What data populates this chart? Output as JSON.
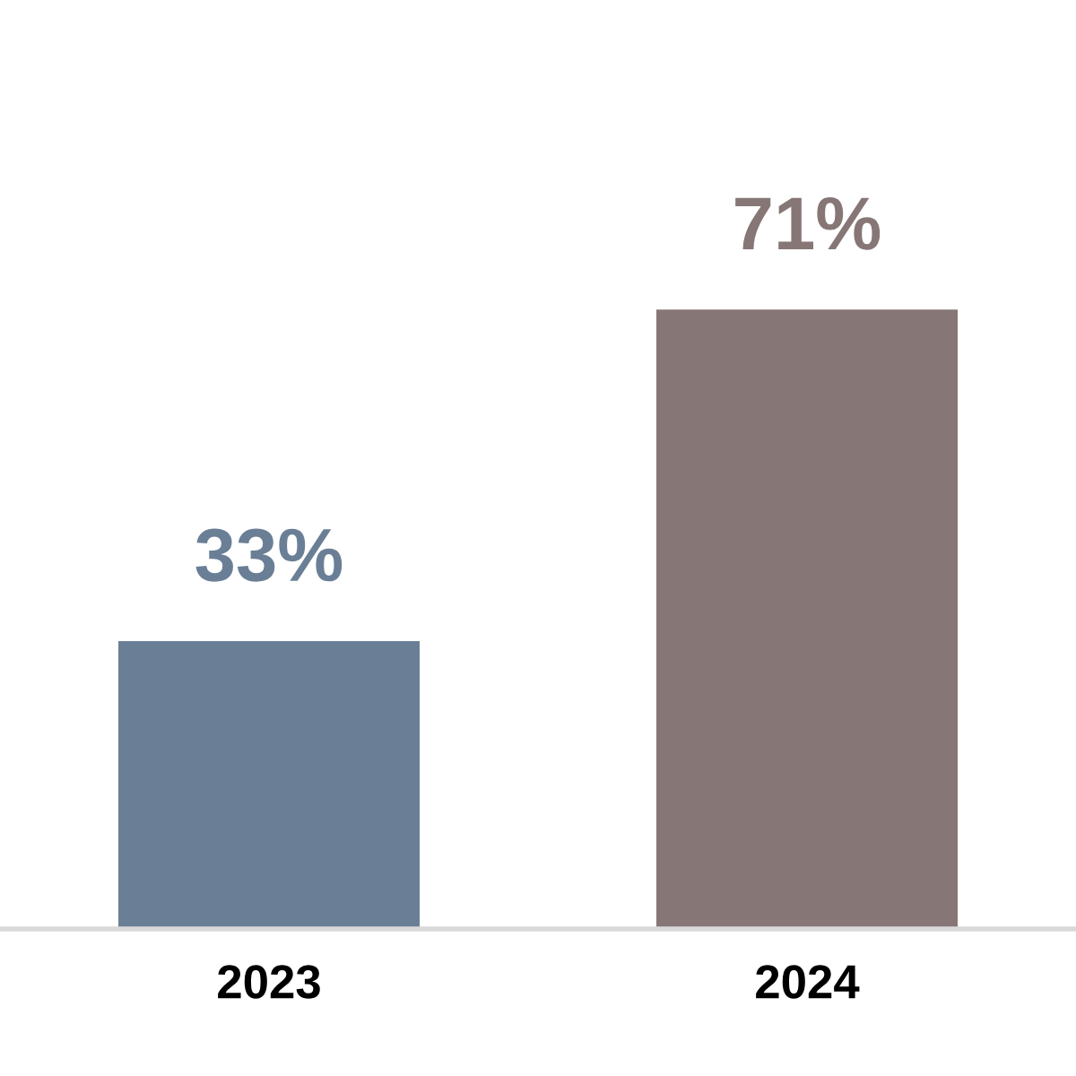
{
  "chart_data": {
    "type": "bar",
    "categories": [
      "2023",
      "2024"
    ],
    "values": [
      33,
      71
    ],
    "colors": [
      "#6a7f96",
      "#877676"
    ],
    "value_labels": [
      "33%",
      "71%"
    ],
    "grid": false,
    "legend": false
  }
}
